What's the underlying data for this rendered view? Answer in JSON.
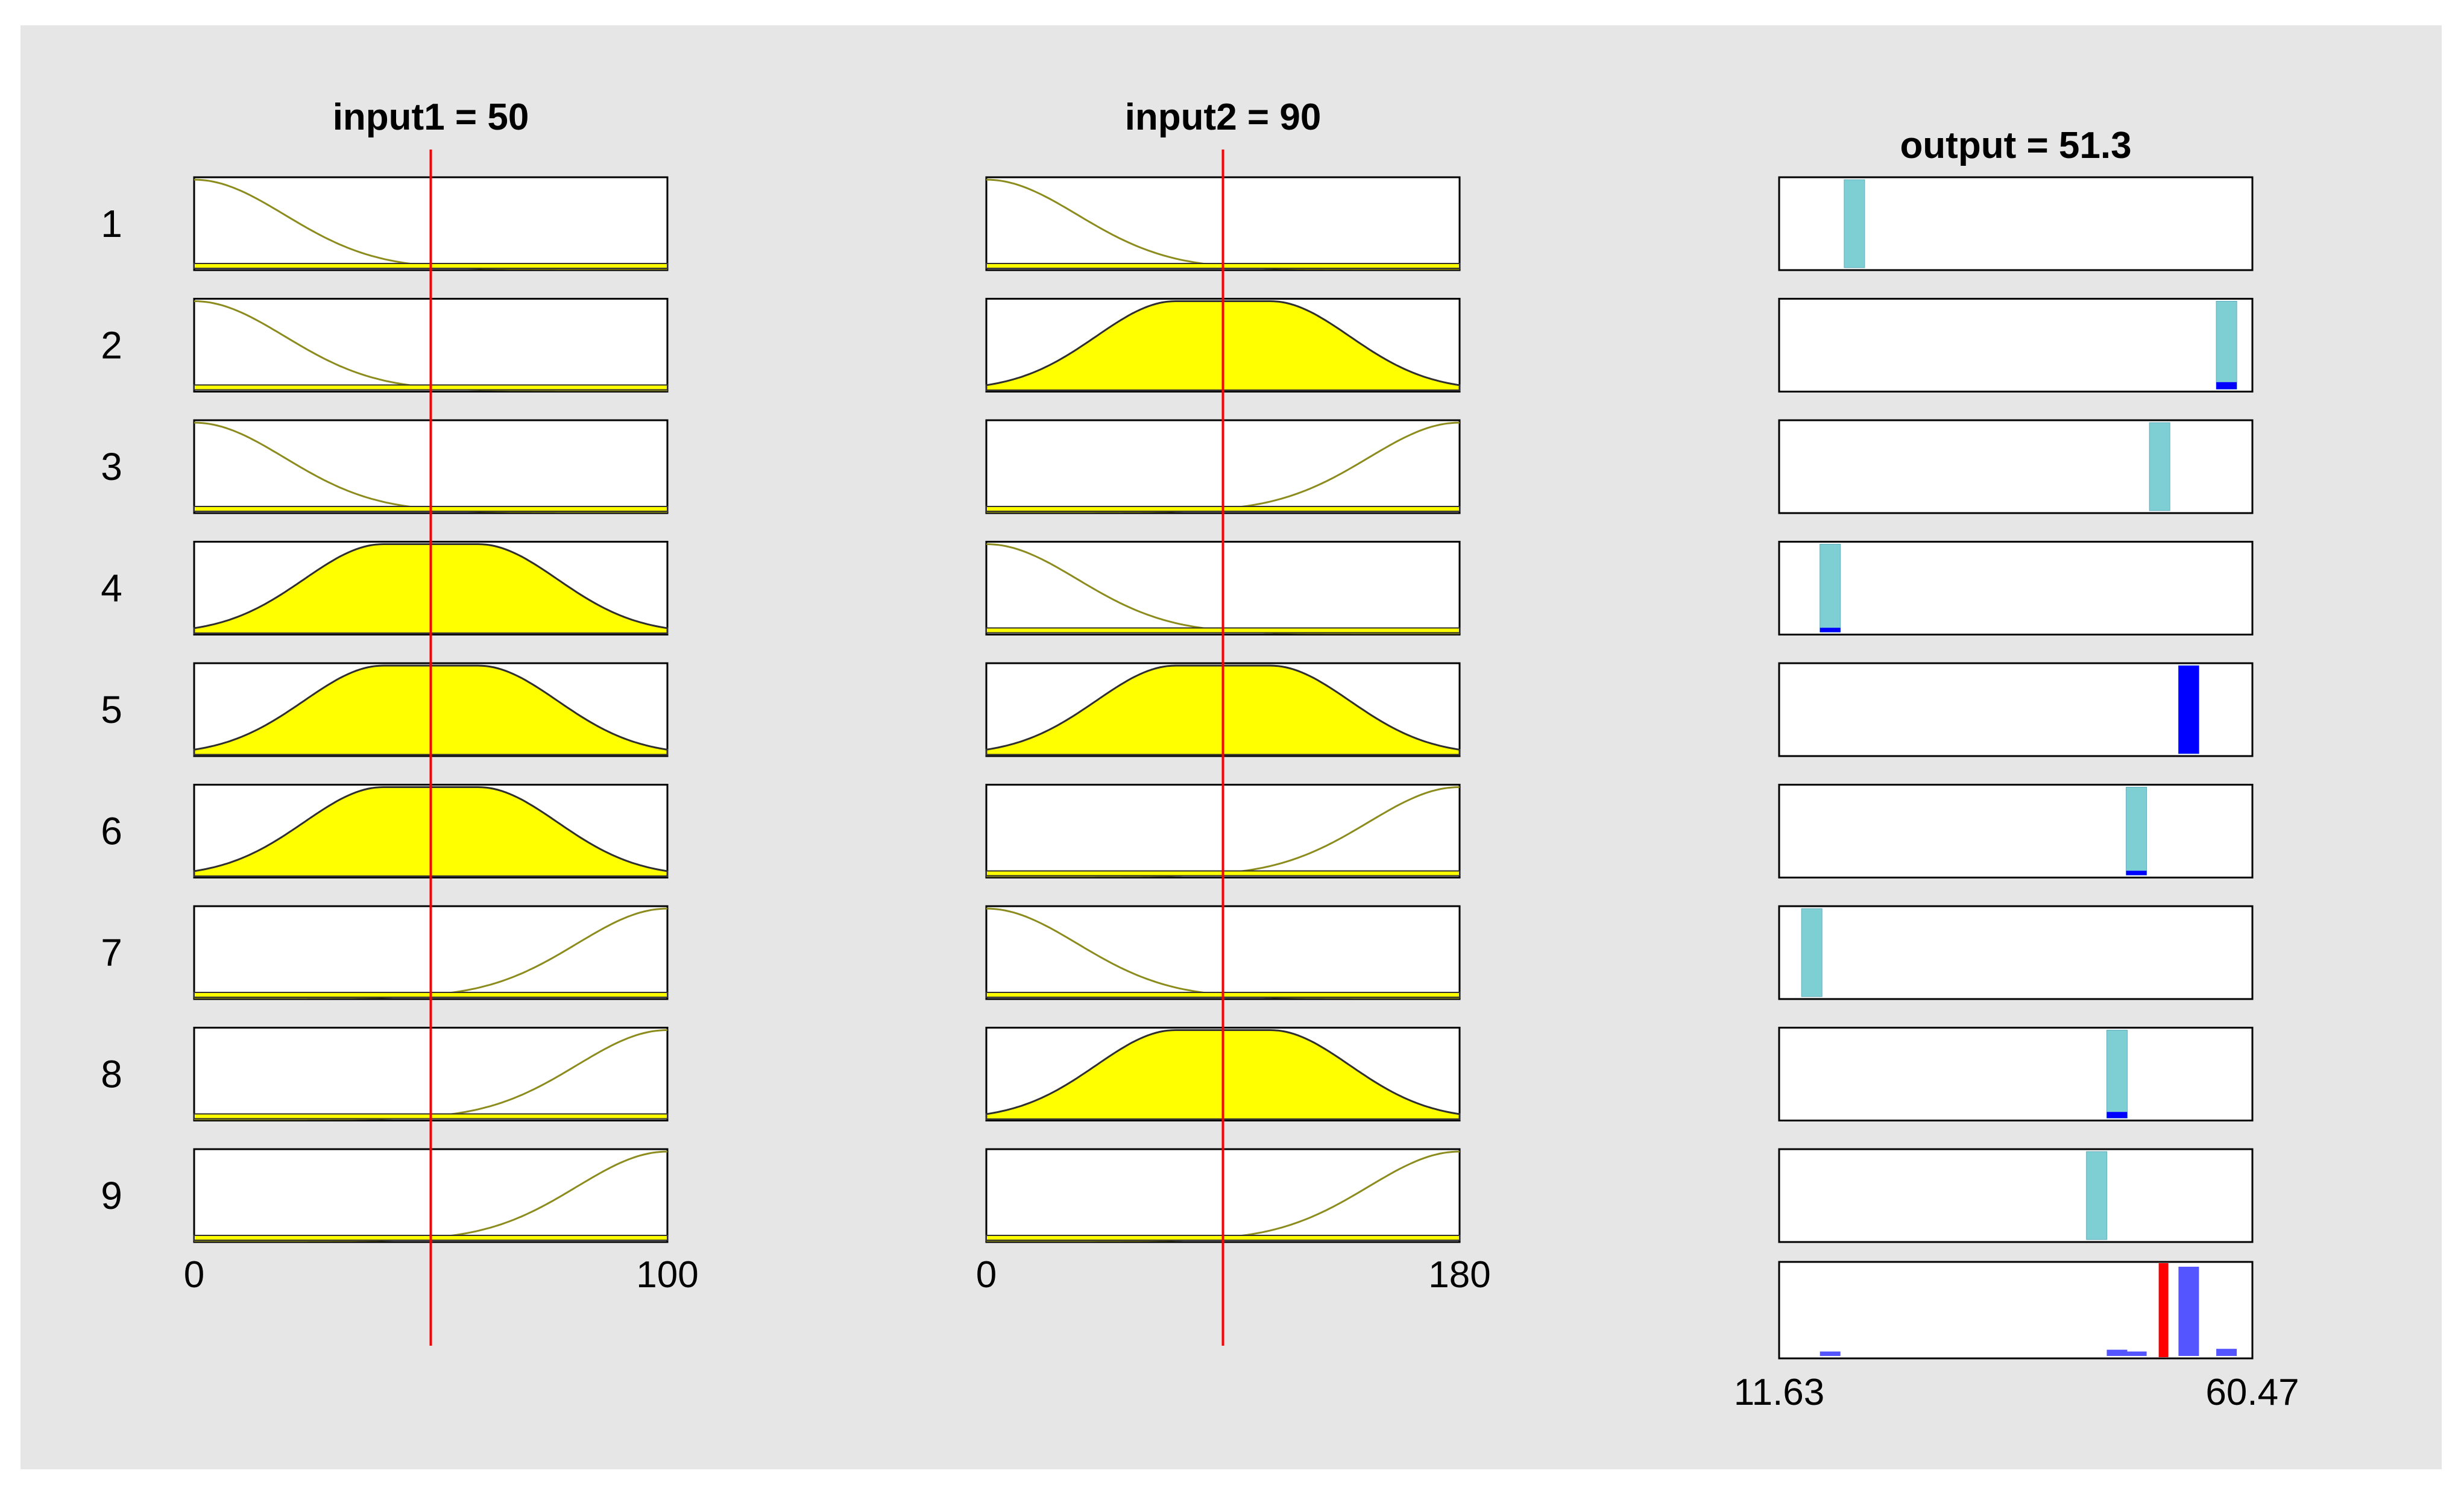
{
  "figure": {
    "background_color": "#e6e6e6",
    "panel_color": "#ffffff",
    "mf_fill_color": "#ffff00",
    "mf_line_color": "#8c8c1e",
    "mf_fill_line_color": "#2f2f2f",
    "input_line_color": "#ff0000",
    "output_bar_color": "#7ecfd4",
    "output_fired_color": "#0000ff",
    "aggregate_color": "#5555ff",
    "centroid_color": "#ff0000"
  },
  "chart_data": {
    "type": "fuzzy-rule-viewer",
    "rule_labels": [
      "1",
      "2",
      "3",
      "4",
      "5",
      "6",
      "7",
      "8",
      "9"
    ],
    "inputs": [
      {
        "name": "input1",
        "title": "input1 = 50",
        "value": 50,
        "range": [
          0,
          100
        ],
        "tick_labels": [
          "0",
          "100"
        ],
        "mf_types": [
          {
            "type": "low",
            "center": 0,
            "flat": 0,
            "width": 32
          },
          {
            "type": "mid",
            "center": 50,
            "flat": 10,
            "width": 30
          },
          {
            "type": "high",
            "center": 100,
            "flat": 0,
            "width": 32
          }
        ],
        "rule_mfs": [
          0,
          0,
          0,
          1,
          1,
          1,
          2,
          2,
          2
        ],
        "rule_active": [
          false,
          false,
          false,
          true,
          true,
          true,
          false,
          false,
          false
        ]
      },
      {
        "name": "input2",
        "title": "input2 = 90",
        "value": 90,
        "range": [
          0,
          180
        ],
        "tick_labels": [
          "0",
          "180"
        ],
        "mf_types": [
          {
            "type": "low",
            "center": 0,
            "flat": 0,
            "width": 58
          },
          {
            "type": "mid",
            "center": 90,
            "flat": 18,
            "width": 54
          },
          {
            "type": "high",
            "center": 180,
            "flat": 0,
            "width": 58
          }
        ],
        "rule_mfs": [
          0,
          1,
          2,
          0,
          1,
          2,
          0,
          1,
          2
        ],
        "rule_active": [
          false,
          true,
          false,
          false,
          true,
          false,
          false,
          true,
          false
        ]
      }
    ],
    "output": {
      "name": "output",
      "title": "output = 51.3",
      "value": 51.3,
      "range": [
        11.63,
        60.47
      ],
      "tick_labels": [
        "11.63",
        "60.47"
      ],
      "rule_positions": [
        19.4,
        57.8,
        50.9,
        16.9,
        53.9,
        48.5,
        15.0,
        46.5,
        44.4
      ],
      "rule_firing": [
        0.0,
        0.08,
        0.0,
        0.05,
        1.0,
        0.05,
        0.0,
        0.07,
        0.0
      ],
      "aggregate_values": [
        0.0,
        0.08,
        0.0,
        0.05,
        1.0,
        0.05,
        0.0,
        0.07,
        0.0
      ]
    }
  }
}
